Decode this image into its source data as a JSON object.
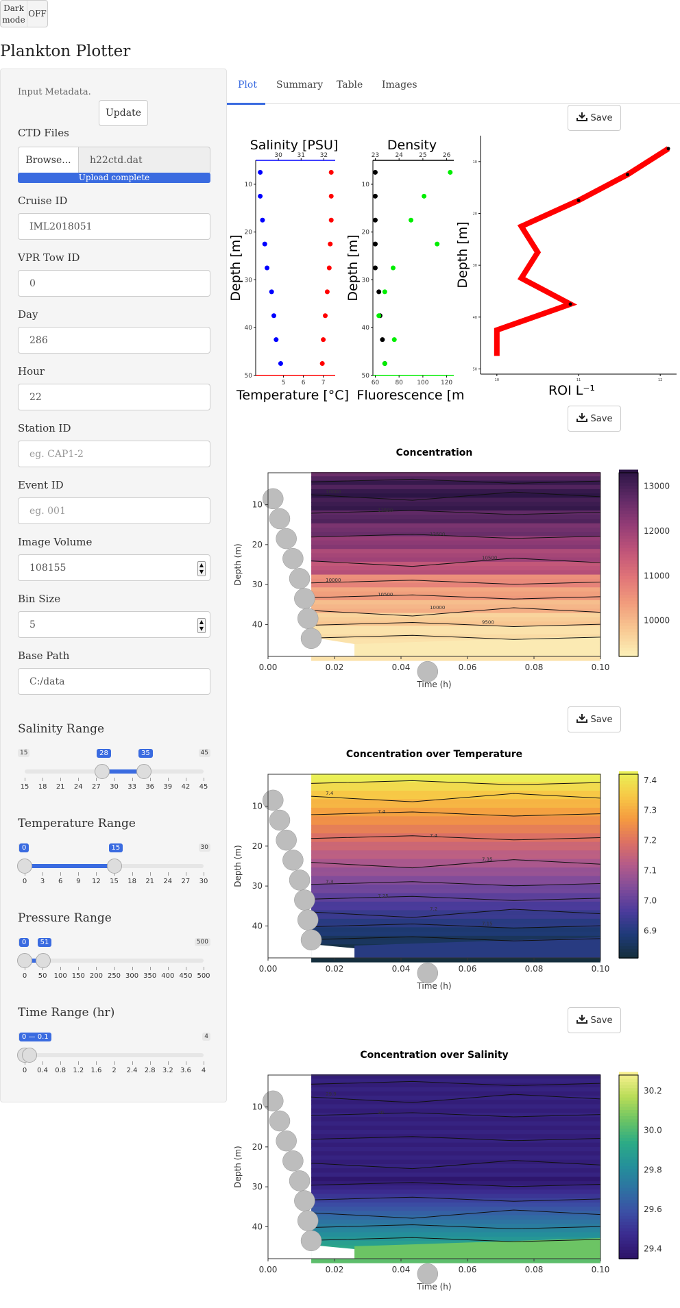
{
  "dark_mode": {
    "label": "Dark mode",
    "state": "OFF"
  },
  "app_title": "Plankton Plotter",
  "sidebar": {
    "metadata_hint": "Input Metadata.",
    "update_button": "Update",
    "ctd_files_label": "CTD Files",
    "browse_button": "Browse...",
    "file_name": "h22ctd.dat",
    "upload_status": "Upload complete",
    "fields": {
      "cruise_id": {
        "label": "Cruise ID",
        "value": "IML2018051",
        "placeholder": ""
      },
      "vpr_tow_id": {
        "label": "VPR Tow ID",
        "value": "0",
        "placeholder": ""
      },
      "day": {
        "label": "Day",
        "value": "286",
        "placeholder": ""
      },
      "hour": {
        "label": "Hour",
        "value": "22",
        "placeholder": ""
      },
      "station_id": {
        "label": "Station ID",
        "value": "",
        "placeholder": "eg. CAP1-2"
      },
      "event_id": {
        "label": "Event ID",
        "value": "",
        "placeholder": "eg. 001"
      },
      "image_volume": {
        "label": "Image Volume",
        "value": "108155",
        "placeholder": ""
      },
      "bin_size": {
        "label": "Bin Size",
        "value": "5",
        "placeholder": ""
      },
      "base_path": {
        "label": "Base Path",
        "value": "C:/data",
        "placeholder": ""
      }
    },
    "sliders": {
      "salinity": {
        "title": "Salinity Range",
        "min": 15,
        "max": 45,
        "from": 28,
        "to": 35,
        "min_label": "15",
        "max_label": "45",
        "from_label": "28",
        "to_label": "35",
        "ticks": [
          "15",
          "18",
          "21",
          "24",
          "27",
          "30",
          "33",
          "36",
          "39",
          "42",
          "45"
        ]
      },
      "temperature": {
        "title": "Temperature Range",
        "min": 0,
        "max": 30,
        "from": 0,
        "to": 15,
        "min_label": "0",
        "max_label": "30",
        "from_label": "0",
        "to_label": "15",
        "ticks": [
          "0",
          "3",
          "6",
          "9",
          "12",
          "15",
          "18",
          "21",
          "24",
          "27",
          "30"
        ]
      },
      "pressure": {
        "title": "Pressure Range",
        "min": 0,
        "max": 500,
        "from": 0,
        "to": 51,
        "min_label": "0",
        "max_label": "500",
        "from_label": "0",
        "to_label": "51",
        "ticks": [
          "0",
          "50",
          "100",
          "150",
          "200",
          "250",
          "300",
          "350",
          "400",
          "450",
          "500"
        ]
      },
      "time": {
        "title": "Time Range (hr)",
        "min": 0,
        "max": 4,
        "from": 0,
        "to": 0.1,
        "min_label": "0",
        "max_label": "4",
        "from_label": "0 — 0.1",
        "to_label": "",
        "ticks": [
          "0",
          "0.4",
          "0.8",
          "1.2",
          "1.6",
          "2",
          "2.4",
          "2.8",
          "3.2",
          "3.6",
          "4"
        ]
      }
    }
  },
  "tabs": [
    "Plot",
    "Summary",
    "Table",
    "Images"
  ],
  "active_tab": "Plot",
  "save_label": "Save",
  "colors": {
    "accent": "#3a6be0",
    "salinity": "#0000ff",
    "temperature": "#ff0000",
    "fluorescence": "#00ee00",
    "density": "#000000",
    "roi": "#ff0000"
  },
  "icons": {
    "save": "download-icon"
  },
  "chart_data": [
    {
      "type": "scatter",
      "title": "Salinity [PSU]",
      "xlabel": "Temperature [°C]",
      "ylabel": "Depth [m]",
      "ylim": [
        50,
        5
      ],
      "top_axis": {
        "lim": [
          29,
          32.5
        ],
        "ticks": [
          "30",
          "31",
          "32"
        ]
      },
      "bottom_axis": {
        "lim": [
          3.6,
          7.6
        ],
        "ticks": [
          "5",
          "6",
          "7"
        ]
      },
      "y_ticks": [
        "10",
        "20",
        "30",
        "40",
        "50"
      ],
      "series": [
        {
          "name": "Salinity [PSU]",
          "x": [
            29.2,
            29.2,
            29.3,
            29.4,
            29.5,
            29.7,
            29.8,
            29.9,
            30.1
          ],
          "y": [
            7.5,
            12.5,
            17.5,
            22.5,
            27.5,
            32.5,
            37.5,
            42.5,
            47.5
          ]
        },
        {
          "name": "Temperature [°C]",
          "x": [
            7.4,
            7.4,
            7.4,
            7.35,
            7.3,
            7.2,
            7.1,
            7.0,
            6.95
          ],
          "y": [
            7.5,
            12.5,
            17.5,
            22.5,
            27.5,
            32.5,
            37.5,
            42.5,
            47.5
          ]
        }
      ]
    },
    {
      "type": "scatter",
      "title": "Density",
      "xlabel": "Fluorescence [m",
      "ylabel": "Depth [m]",
      "ylim": [
        50,
        5
      ],
      "top_axis": {
        "lim": [
          22.9,
          26.3
        ],
        "ticks": [
          "23",
          "24",
          "25",
          "26"
        ]
      },
      "bottom_axis": {
        "lim": [
          58,
          126
        ],
        "ticks": [
          "60",
          "80",
          "100",
          "120"
        ]
      },
      "y_ticks": [
        "10",
        "20",
        "30",
        "40",
        "50"
      ],
      "series": [
        {
          "name": "Density",
          "x": [
            23.0,
            23.0,
            23.0,
            23.0,
            23.0,
            23.15,
            23.2,
            23.3,
            23.4
          ],
          "y": [
            7.5,
            12.5,
            17.5,
            22.5,
            27.5,
            32.5,
            37.5,
            42.5,
            47.5
          ]
        },
        {
          "name": "Fluorescence",
          "x": [
            123,
            101,
            90,
            112,
            75,
            68,
            63,
            76,
            68
          ],
          "y": [
            7.5,
            12.5,
            17.5,
            22.5,
            27.5,
            32.5,
            37.5,
            42.5,
            47.5
          ]
        }
      ]
    },
    {
      "type": "line",
      "xlabel": "ROI L⁻¹",
      "ylabel": "Depth [m]",
      "xlim": [
        9.8,
        12.2
      ],
      "ylim": [
        51,
        5
      ],
      "x_ticks": [
        "10",
        "11",
        "12"
      ],
      "y_ticks": [
        "10",
        "20",
        "30",
        "40",
        "50"
      ],
      "series": [
        {
          "name": "",
          "x": [
            10.0,
            10.0,
            10.9,
            10.3,
            10.5,
            10.3,
            11.0,
            11.6,
            12.1
          ],
          "y": [
            47.5,
            42.5,
            37.5,
            32.5,
            27.5,
            22.5,
            17.5,
            12.5,
            7.5
          ]
        }
      ]
    },
    {
      "type": "heatmap",
      "title": "Concentration",
      "xlabel": "Time (h)",
      "ylabel": "Depth (m)",
      "xlim": [
        0,
        0.1
      ],
      "ylim": [
        48,
        2
      ],
      "x_ticks": [
        "0.00",
        "0.02",
        "0.04",
        "0.06",
        "0.08",
        "0.10"
      ],
      "y_ticks": [
        "10",
        "20",
        "30",
        "40"
      ],
      "colorbar": {
        "ticks": [
          "10000",
          "11000",
          "12000",
          "13000"
        ],
        "lim": [
          9200,
          13300
        ],
        "palette": [
          "#fcf0b8",
          "#f8c892",
          "#f19c7c",
          "#e07478",
          "#bf5479",
          "#923c76",
          "#5f2a66",
          "#2c1545"
        ]
      },
      "contour_labels": [
        "10000",
        "11500",
        "12500",
        "10500",
        "10000",
        "10500",
        "10000",
        "9500"
      ]
    },
    {
      "type": "heatmap",
      "title": "Concentration over Temperature",
      "xlabel": "Time (h)",
      "ylabel": "Depth (m)",
      "xlim": [
        0,
        0.1
      ],
      "ylim": [
        48,
        2
      ],
      "x_ticks": [
        "0.00",
        "0.02",
        "0.04",
        "0.06",
        "0.08",
        "0.10"
      ],
      "y_ticks": [
        "10",
        "20",
        "30",
        "40"
      ],
      "colorbar": {
        "ticks": [
          "6.9",
          "7.0",
          "7.1",
          "7.2",
          "7.3",
          "7.4"
        ],
        "lim": [
          6.81,
          7.42
        ],
        "palette": [
          "#152f3e",
          "#1f3b7a",
          "#4c3b9c",
          "#804c9a",
          "#b45b8a",
          "#dd7163",
          "#f59a40",
          "#f7c846",
          "#eaf056"
        ]
      },
      "contour_labels": [
        "7.4",
        "7.4",
        "7.4",
        "7.35",
        "7.3",
        "7.25",
        "7.2",
        "7.15"
      ]
    },
    {
      "type": "heatmap",
      "title": "Concentration over Salinity",
      "xlabel": "Time (h)",
      "ylabel": "Depth (m)",
      "xlim": [
        0,
        0.1
      ],
      "ylim": [
        48,
        2
      ],
      "x_ticks": [
        "0.00",
        "0.02",
        "0.04",
        "0.06",
        "0.08",
        "0.10"
      ],
      "y_ticks": [
        "10",
        "20",
        "30",
        "40"
      ],
      "colorbar": {
        "ticks": [
          "29.4",
          "29.6",
          "29.8",
          "30.0",
          "30.2"
        ],
        "lim": [
          29.35,
          30.28
        ],
        "palette": [
          "#2d1469",
          "#3b2b8f",
          "#3b50a5",
          "#2e72a2",
          "#24909a",
          "#2cab86",
          "#6cc464",
          "#b8dc57",
          "#f7f08f"
        ]
      },
      "contour_labels": [
        "29.9",
        "30"
      ]
    }
  ]
}
